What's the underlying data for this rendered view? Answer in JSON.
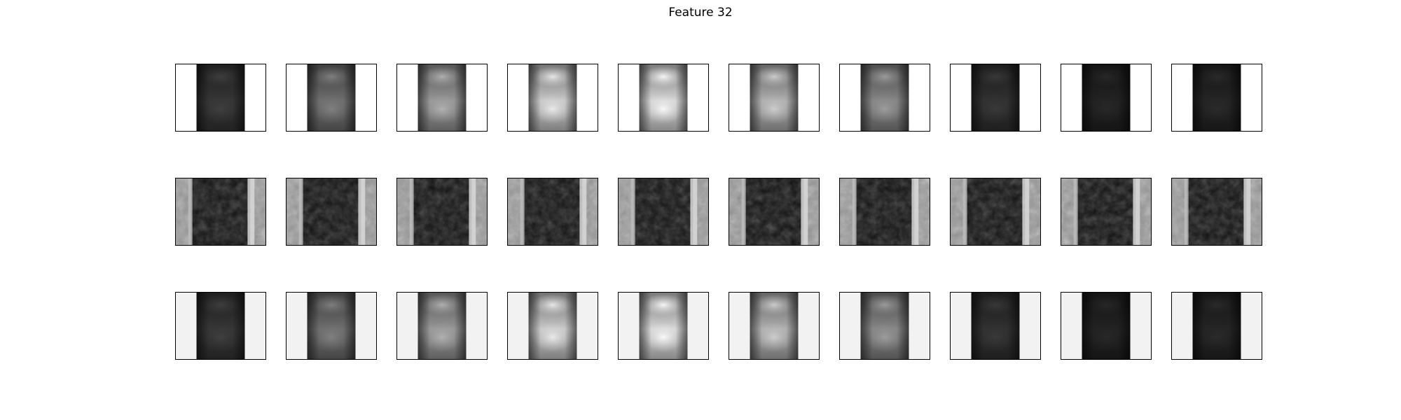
{
  "figure": {
    "title": "Feature 32",
    "layout": {
      "rows": 3,
      "columns": 10
    },
    "row_styles": [
      {
        "background": "#ffffff",
        "kind": "gradient-column"
      },
      {
        "background": "#7a7a7a",
        "kind": "texture"
      },
      {
        "background": "#f2f2f2",
        "kind": "gradient-column"
      }
    ],
    "column_brightness": [
      0.22,
      0.45,
      0.62,
      0.82,
      0.88,
      0.72,
      0.55,
      0.2,
      0.14,
      0.15
    ]
  }
}
